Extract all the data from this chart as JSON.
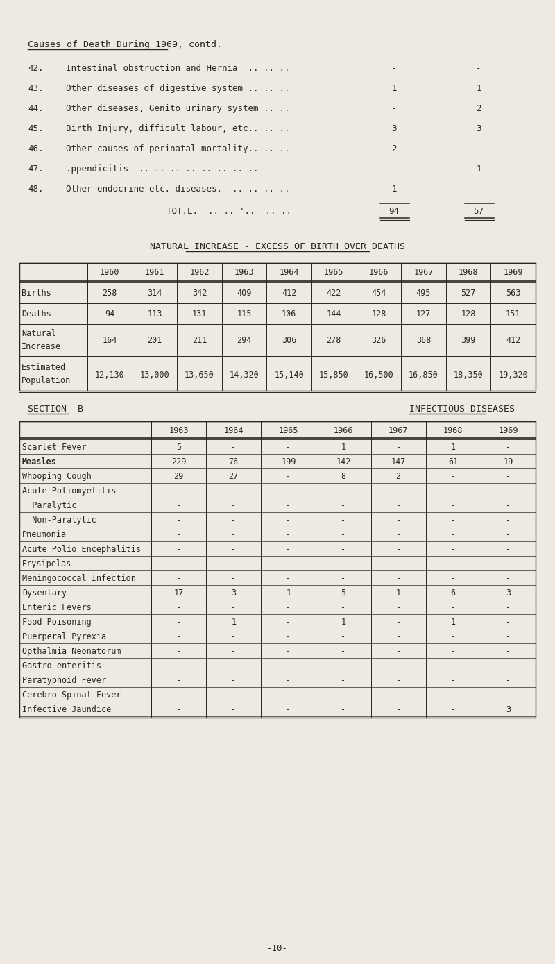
{
  "bg_color": "#eeeae2",
  "text_color": "#2a2520",
  "page_title": "Causes of Death During 1969, contd.",
  "causes": [
    {
      "num": "42.",
      "desc": "Intestinal obstruction and Hernia  .. .. ..",
      "col1": "-",
      "col2": "-"
    },
    {
      "num": "43.",
      "desc": "Other diseases of digestive system .. .. ..",
      "col1": "1",
      "col2": "1"
    },
    {
      "num": "44.",
      "desc": "Other diseases, Genito urinary system .. ..",
      "col1": "-",
      "col2": "2"
    },
    {
      "num": "45.",
      "desc": "Birth Injury, difficult labour, etc.. .. ..",
      "col1": "3",
      "col2": "3"
    },
    {
      "num": "46.",
      "desc": "Other causes of perinatal mortality.. .. ..",
      "col1": "2",
      "col2": "-"
    },
    {
      "num": "47.",
      "desc": ".ppendicitis  .. .. .. .. .. .. .. ..",
      "col1": "-",
      "col2": "1"
    },
    {
      "num": "48.",
      "desc": "Other endocrine etc. diseases.  .. .. .. ..",
      "col1": "1",
      "col2": "-"
    }
  ],
  "total_label": "TOT.L.  .. .. '..  .. ..",
  "total_col1": "94",
  "total_col2": "57",
  "nat_increase_title": "NATURAL INCREASE - EXCESS OF BIRTH OVER DEATHS",
  "ni_years": [
    "1960",
    "1961",
    "1962",
    "1963",
    "1964",
    "1965",
    "1966",
    "1967",
    "1968",
    "1969"
  ],
  "ni_rows": [
    {
      "label": "Births",
      "label2": "",
      "values": [
        "258",
        "314",
        "342",
        "409",
        "412",
        "422",
        "454",
        "495",
        "527",
        "563"
      ]
    },
    {
      "label": "Deaths",
      "label2": "",
      "values": [
        "94",
        "113",
        "131",
        "115",
        "106",
        "144",
        "128",
        "127",
        "128",
        "151"
      ]
    },
    {
      "label": "Natural",
      "label2": "Increase",
      "values": [
        "164",
        "201",
        "211",
        "294",
        "306",
        "278",
        "326",
        "368",
        "399",
        "412"
      ]
    },
    {
      "label": "Estimated",
      "label2": "Population",
      "values": [
        "12,130",
        "13,000",
        "13,650",
        "14,320",
        "15,140",
        "15,850",
        "16,500",
        "16,850",
        "18,350",
        "19,320"
      ]
    }
  ],
  "section_b_label": "SECTION  B",
  "section_b_title": "INFECTIOUS DISEASES",
  "inf_years": [
    "1963",
    "1964",
    "1965",
    "1966",
    "1967",
    "1968",
    "1969"
  ],
  "inf_rows": [
    {
      "label": "Scarlet Fever",
      "bold": false,
      "values": [
        "5",
        "-",
        "-",
        "1",
        "-",
        "1",
        "-"
      ]
    },
    {
      "label": "Measles",
      "bold": true,
      "values": [
        "229",
        "76",
        "199",
        "142",
        "147",
        "61",
        "19"
      ]
    },
    {
      "label": "Whooping Cough",
      "bold": false,
      "values": [
        "29",
        "27",
        "-",
        "8",
        "2",
        "-",
        "-"
      ]
    },
    {
      "label": "Acute Poliomyelitis",
      "bold": false,
      "values": [
        "-",
        "-",
        "-",
        "-",
        "-",
        "-",
        "-"
      ]
    },
    {
      "label": "  Paralytic",
      "bold": false,
      "values": [
        "-",
        "-",
        "-",
        "-",
        "-",
        "-",
        "-"
      ]
    },
    {
      "label": "  Non-Paralytic",
      "bold": false,
      "values": [
        "-",
        "-",
        "-",
        "-",
        "-",
        "-",
        "-"
      ]
    },
    {
      "label": "Pneumonia",
      "bold": false,
      "values": [
        "-",
        "-",
        "-",
        "-",
        "-",
        "-",
        "-"
      ]
    },
    {
      "label": "Acute Polio Encephalitis",
      "bold": false,
      "values": [
        "-",
        "-",
        "-",
        "-",
        "-",
        "-",
        "-"
      ]
    },
    {
      "label": "Erysipelas",
      "bold": false,
      "values": [
        "-",
        "-",
        "-",
        "-",
        "-",
        "-",
        "-"
      ]
    },
    {
      "label": "Meningococcal Infection",
      "bold": false,
      "values": [
        "-",
        "-",
        "-",
        "-",
        "-",
        "-",
        "-"
      ]
    },
    {
      "label": "Dysentary",
      "bold": false,
      "values": [
        "17",
        "3",
        "1",
        "5",
        "1",
        "6",
        "3"
      ]
    },
    {
      "label": "Enteric Fevers",
      "bold": false,
      "values": [
        "-",
        "-",
        "-",
        "-",
        "-",
        "-",
        "-"
      ]
    },
    {
      "label": "Food Poisoning",
      "bold": false,
      "values": [
        "-",
        "1",
        "-",
        "1",
        "-",
        "1",
        "-"
      ]
    },
    {
      "label": "Puerperal Pyrexia",
      "bold": false,
      "values": [
        "-",
        "-",
        "-",
        "-",
        "-",
        "-",
        "-"
      ]
    },
    {
      "label": "Opthalmia Neonatorum",
      "bold": false,
      "values": [
        "-",
        "-",
        "-",
        "-",
        "-",
        "-",
        "-"
      ]
    },
    {
      "label": "Gastro enteritis",
      "bold": false,
      "values": [
        "-",
        "-",
        "-",
        "-",
        "-",
        "-",
        "-"
      ]
    },
    {
      "label": "Paratyphoid Fever",
      "bold": false,
      "values": [
        "-",
        "-",
        "-",
        "-",
        "-",
        "-",
        "-"
      ]
    },
    {
      "label": "Cerebro Spinal Fever",
      "bold": false,
      "values": [
        "-",
        "-",
        "-",
        "-",
        "-",
        "-",
        "-"
      ]
    },
    {
      "label": "Infective Jaundice",
      "bold": false,
      "values": [
        "-",
        "-",
        "-",
        "-",
        "-",
        "-",
        "3"
      ]
    }
  ],
  "page_num": "-10-"
}
